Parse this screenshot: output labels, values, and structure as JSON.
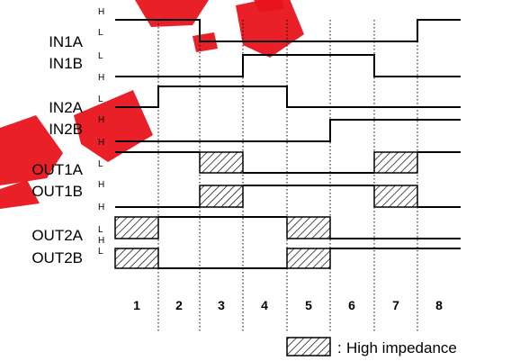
{
  "signals": [
    {
      "name": "IN1A",
      "top_level": "H",
      "bottom_level": "L"
    },
    {
      "name": "IN1B",
      "top_level": "L",
      "bottom_level": "H"
    },
    {
      "name": "IN2A",
      "top_level": "L",
      "bottom_level": "H"
    },
    {
      "name": "IN2B",
      "top_level": "L",
      "bottom_level": "H"
    },
    {
      "name": "OUT1A",
      "top_level": "L",
      "bottom_level": "H"
    },
    {
      "name": "OUT1B",
      "top_level": "L",
      "bottom_level": "H"
    },
    {
      "name": "OUT2A",
      "top_level": "L",
      "bottom_level": "H"
    },
    {
      "name": "OUT2B",
      "top_level": "L",
      "bottom_level": ""
    }
  ],
  "periods": [
    "1",
    "2",
    "3",
    "4",
    "5",
    "6",
    "7",
    "8"
  ],
  "legend": {
    "separator": ":",
    "text": "High impedance"
  },
  "watermark_color": "#e8141b"
}
